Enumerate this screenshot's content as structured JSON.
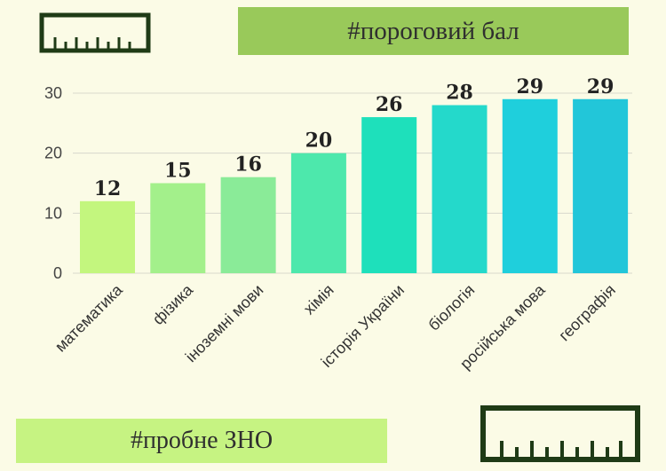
{
  "banners": {
    "top": "#пороговий бал",
    "bottom": "#пробне ЗНО"
  },
  "icons": {
    "top_ruler": "ruler-icon",
    "bottom_ruler": "ruler-icon"
  },
  "colors": {
    "background": "#fbfbe6",
    "banner_top": "#99c95a",
    "banner_bottom": "#c6f382",
    "ruler": "#1f3b16",
    "bars": [
      "#c3f67e",
      "#a3f08b",
      "#8aeb98",
      "#4de8ac",
      "#1ee0bb",
      "#24d9cb",
      "#1fcfdc",
      "#22c6d9"
    ]
  },
  "chart_data": {
    "type": "bar",
    "categories": [
      "математика",
      "фізика",
      "іноземні мови",
      "хімія",
      "історія України",
      "біологія",
      "російська мова",
      "географія"
    ],
    "values": [
      12,
      15,
      16,
      20,
      26,
      28,
      29,
      29
    ],
    "yticks": [
      0,
      10,
      20,
      30
    ],
    "ylim": [
      0,
      30
    ],
    "grid": true,
    "data_labels": true
  }
}
